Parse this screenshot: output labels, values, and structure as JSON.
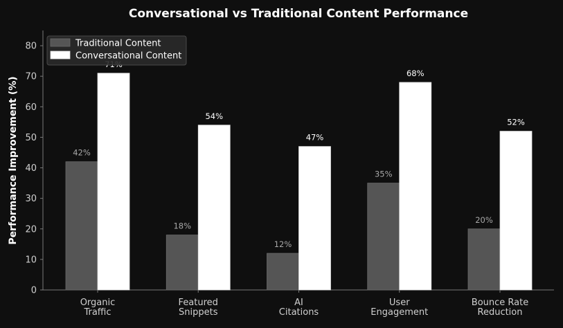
{
  "chart_data": {
    "type": "bar",
    "title": "Conversational vs Traditional Content Performance",
    "xlabel": "",
    "ylabel": "Performance Improvement (%)",
    "ylim": [
      0,
      85
    ],
    "yticks": [
      0,
      10,
      20,
      30,
      40,
      50,
      60,
      70,
      80
    ],
    "categories": [
      [
        "Organic",
        "Traffic"
      ],
      [
        "Featured",
        "Snippets"
      ],
      [
        "AI",
        "Citations"
      ],
      [
        "User",
        "Engagement"
      ],
      [
        "Bounce Rate",
        "Reduction"
      ]
    ],
    "series": [
      {
        "name": "Traditional Content",
        "values": [
          42,
          18,
          12,
          35,
          20
        ],
        "labels": [
          "42%",
          "18%",
          "12%",
          "35%",
          "20%"
        ],
        "color": "#555555"
      },
      {
        "name": "Conversational Content",
        "values": [
          71,
          54,
          47,
          68,
          52
        ],
        "labels": [
          "71%",
          "54%",
          "47%",
          "68%",
          "52%"
        ],
        "color": "#ffffff"
      }
    ],
    "legend": "top-left",
    "grid": false
  },
  "colors": {
    "background": "#0f0f0f",
    "axis": "#7a7a7a",
    "traditional": "#555555",
    "conversational": "#ffffff"
  }
}
